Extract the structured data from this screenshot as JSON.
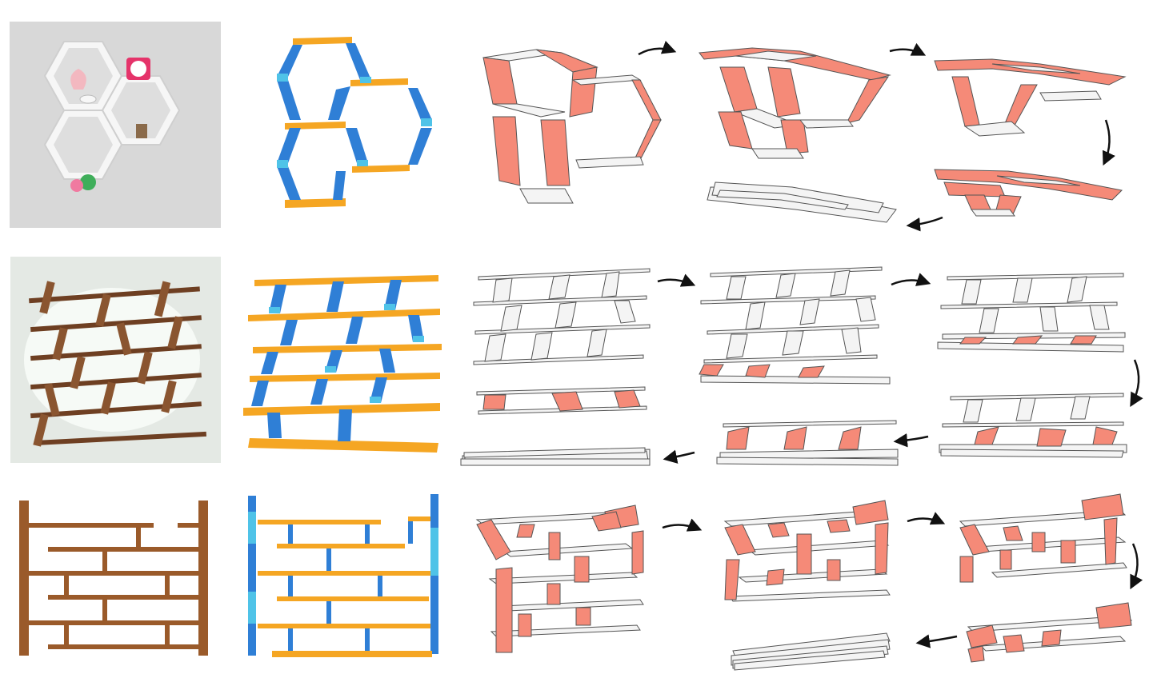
{
  "figure": {
    "rows": [
      {
        "id": "hexagon-shelf",
        "photo": {
          "wall": "#d9d9d9",
          "shelf": "#f4f4f4",
          "props": [
            "teapot",
            "clock",
            "cup",
            "chair-figurine",
            "doll-figurines"
          ]
        },
        "model_colors": {
          "board": "#f5a623",
          "panel": "#2f7fd6",
          "hinge": "#4fc3e8"
        },
        "stages": 6
      },
      {
        "id": "slanted-bookshelf",
        "photo": {
          "wall": "#e6eae6",
          "wood": "#7a4a2a"
        },
        "model_colors": {
          "board": "#f5a623",
          "panel": "#2f7fd6",
          "hinge": "#4fc3e8"
        },
        "stages": 7
      },
      {
        "id": "maze-bookshelf",
        "photo": {
          "wall": "#ffffff",
          "wood": "#9a5a2a"
        },
        "model_colors": {
          "board": "#f5a623",
          "panel": "#2f7fd6",
          "hinge": "#4fc3e8"
        },
        "stages": 7
      }
    ],
    "colors": {
      "highlight": "#f58a78",
      "highlight_edge": "#c0392b",
      "plate_fill": "#f4f4f4",
      "plate_edge": "#555555",
      "arrow": "#111111"
    }
  }
}
